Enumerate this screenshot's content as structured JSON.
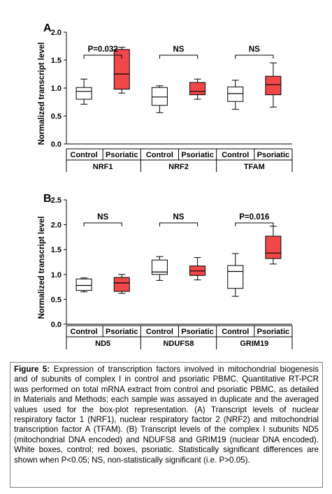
{
  "figure": {
    "caption_label": "Figure 5:",
    "caption_text": " Expression of transcription factors involved in mitochondrial biogenesis and of subunits of complex I in control and psoriatic PBMC. Quantitative RT-PCR was performed on total mRNA extract from control and psoriatic PBMC, as detailed in Materials and Methods; each sample was assayed in duplicate and the averaged values used for the box-plot representation. (A) Transcript levels of nuclear respiratory factor 1 (NRF1), nuclear respiratory factor 2 (NRF2) and mitochondrial transcription factor A (TFAM). (B) Transcript levels of the complex I subunits ND5 (mitochondrial DNA encoded) and NDUFS8 and GRIM19 (nuclear DNA encoded). White boxes, control; red boxes, psoriatic. Statistically significant differences are shown when P<0.05; NS, non-statistically significant (i.e. P>0.05)."
  },
  "colors": {
    "control_box": "#ffffff",
    "psoriatic_box": "#f04848",
    "axis": "#000000",
    "bracket": "#000000"
  },
  "chart_data": [
    {
      "type": "box",
      "panel": "A",
      "ylabel": "Normalized transcript level",
      "ylim": [
        0,
        2.0
      ],
      "yticks": [
        "0.0",
        "0.5",
        "1.0",
        "1.5",
        "2.0"
      ],
      "grid": false,
      "groups": [
        "NRF1",
        "NRF2",
        "TFAM"
      ],
      "conditions": [
        "Control",
        "Psoriatic"
      ],
      "boxes": [
        {
          "group": "NRF1",
          "condition": "Control",
          "min": 0.71,
          "q1": 0.8,
          "median": 0.94,
          "q3": 1.01,
          "max": 1.16
        },
        {
          "group": "NRF1",
          "condition": "Psoriatic",
          "min": 0.91,
          "q1": 0.98,
          "median": 1.25,
          "q3": 1.69,
          "max": 1.73
        },
        {
          "group": "NRF2",
          "condition": "Control",
          "min": 0.56,
          "q1": 0.69,
          "median": 0.84,
          "q3": 1.01,
          "max": 1.04
        },
        {
          "group": "NRF2",
          "condition": "Psoriatic",
          "min": 0.8,
          "q1": 0.88,
          "median": 0.94,
          "q3": 1.1,
          "max": 1.16
        },
        {
          "group": "TFAM",
          "condition": "Control",
          "min": 0.62,
          "q1": 0.76,
          "median": 0.9,
          "q3": 1.02,
          "max": 1.14
        },
        {
          "group": "TFAM",
          "condition": "Psoriatic",
          "min": 0.66,
          "q1": 0.88,
          "median": 1.06,
          "q3": 1.21,
          "max": 1.45
        }
      ],
      "annotations": [
        "P=0.032",
        "NS",
        "NS"
      ]
    },
    {
      "type": "box",
      "panel": "B",
      "ylabel": "Normalized transcript level",
      "ylim": [
        0,
        2.5
      ],
      "yticks": [
        "0.0",
        "0.5",
        "1.0",
        "1.5",
        "2.0",
        "2.5"
      ],
      "grid": false,
      "groups": [
        "ND5",
        "NDUFS8",
        "GRIM19"
      ],
      "conditions": [
        "Control",
        "Psoriatic"
      ],
      "boxes": [
        {
          "group": "ND5",
          "condition": "Control",
          "min": 0.65,
          "q1": 0.68,
          "median": 0.78,
          "q3": 0.91,
          "max": 0.93
        },
        {
          "group": "ND5",
          "condition": "Psoriatic",
          "min": 0.62,
          "q1": 0.66,
          "median": 0.83,
          "q3": 0.94,
          "max": 1.0
        },
        {
          "group": "NDUFS8",
          "condition": "Control",
          "min": 0.88,
          "q1": 1.0,
          "median": 1.05,
          "q3": 1.29,
          "max": 1.36
        },
        {
          "group": "NDUFS8",
          "condition": "Psoriatic",
          "min": 0.89,
          "q1": 0.98,
          "median": 1.07,
          "q3": 1.17,
          "max": 1.34
        },
        {
          "group": "GRIM19",
          "condition": "Control",
          "min": 0.56,
          "q1": 0.72,
          "median": 1.06,
          "q3": 1.18,
          "max": 1.42
        },
        {
          "group": "GRIM19",
          "condition": "Psoriatic",
          "min": 1.21,
          "q1": 1.32,
          "median": 1.43,
          "q3": 1.77,
          "max": 1.97
        }
      ],
      "annotations": [
        "NS",
        "NS",
        "P=0.016"
      ]
    }
  ]
}
